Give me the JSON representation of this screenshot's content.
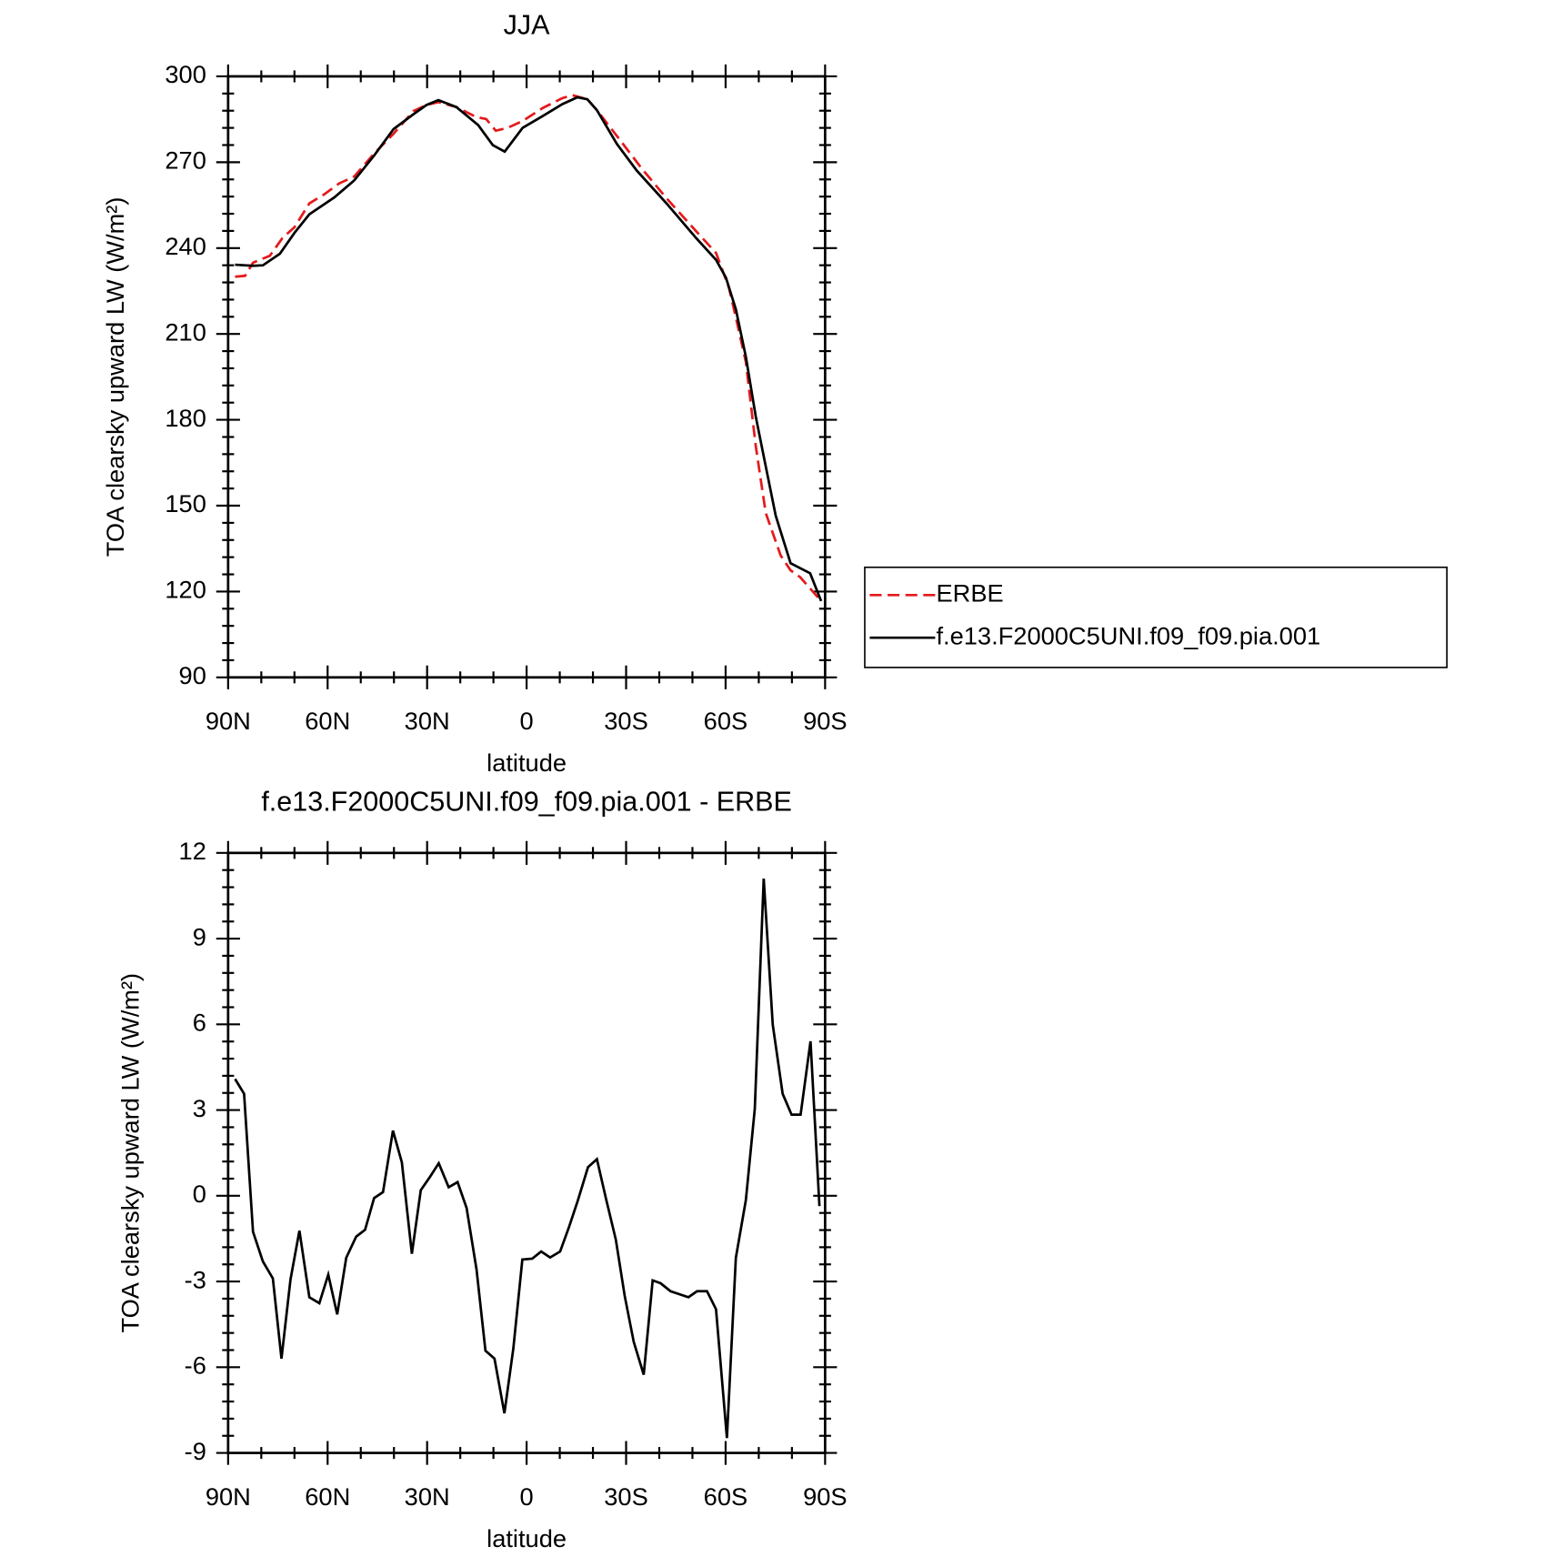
{
  "chart_data": [
    {
      "type": "line",
      "title": "JJA",
      "xlabel": "latitude",
      "ylabel": "TOA clearsky upward LW (W/m²)",
      "xlim": [
        90,
        -90
      ],
      "xticks": [
        {
          "value": 90,
          "label": "90N"
        },
        {
          "value": 60,
          "label": "60N"
        },
        {
          "value": 30,
          "label": "30N"
        },
        0,
        {
          "value": -30,
          "label": "30S"
        },
        {
          "value": -60,
          "label": "60S"
        },
        {
          "value": -90,
          "label": "90S"
        }
      ],
      "ylim": [
        90,
        300
      ],
      "yticks": [
        90,
        120,
        150,
        180,
        210,
        240,
        270,
        300
      ],
      "legend": "right",
      "series": [
        {
          "name": "ERBE",
          "color": "#e41a1c",
          "dash": "dashed",
          "x": [
            87.9,
            84.9,
            82.5,
            77.4,
            73.6,
            70.0,
            65.5,
            61.0,
            56.5,
            52.0,
            46.0,
            40.1,
            34.1,
            30.2,
            26.6,
            21.2,
            15.2,
            12.2,
            9.3,
            5.7,
            1.2,
            -4.8,
            -10.8,
            -13.8,
            -18.3,
            -21.2,
            -27.2,
            -34.7,
            -42.2,
            -51.1,
            -57.1,
            -61.0,
            -63.1,
            -66.1,
            -69.1,
            -72.1,
            -76.6,
            -79.6,
            -82.5,
            -88.8
          ],
          "values": [
            230.0,
            230.3,
            234.9,
            237.3,
            243.5,
            247.3,
            255.6,
            258.8,
            262.6,
            265.0,
            273.0,
            280.0,
            287.9,
            290.0,
            291.0,
            289.3,
            285.8,
            285.1,
            281.0,
            282.0,
            284.4,
            288.9,
            292.4,
            293.4,
            292.0,
            288.2,
            279.2,
            267.8,
            257.4,
            245.9,
            238.3,
            226.2,
            215.8,
            200.2,
            170.8,
            147.5,
            132.6,
            127.4,
            125.0,
            116.7
          ]
        },
        {
          "name": "f.e13.F2000C5UNI.f09_f09.pia.001",
          "color": "#000000",
          "dash": "solid",
          "x": [
            87.9,
            82.5,
            79.5,
            74.4,
            70.0,
            65.5,
            58.0,
            52.0,
            46.0,
            40.1,
            34.1,
            30.2,
            26.6,
            21.2,
            14.6,
            10.2,
            6.6,
            1.2,
            -4.8,
            -10.8,
            -15.3,
            -18.3,
            -21.2,
            -27.2,
            -33.2,
            -42.2,
            -51.1,
            -57.1,
            -60.1,
            -63.1,
            -66.1,
            -69.1,
            -72.1,
            -75.1,
            -79.6,
            -85.5,
            -88.8
          ],
          "values": [
            234.2,
            233.8,
            234.0,
            238.0,
            245.3,
            251.8,
            257.7,
            263.6,
            272.3,
            281.6,
            286.8,
            290.0,
            291.7,
            289.3,
            283.0,
            276.0,
            273.7,
            282.0,
            286.1,
            290.3,
            292.7,
            292.0,
            288.2,
            276.4,
            267.1,
            255.6,
            243.5,
            235.9,
            229.7,
            218.6,
            202.0,
            181.1,
            163.8,
            146.5,
            129.9,
            126.4,
            116.7
          ]
        }
      ]
    },
    {
      "type": "line",
      "title": "f.e13.F2000C5UNI.f09_f09.pia.001 - ERBE",
      "xlabel": "latitude",
      "ylabel": "TOA clearsky upward LW (W/m²)",
      "xlim": [
        90,
        -90
      ],
      "xticks": [
        {
          "value": 90,
          "label": "90N"
        },
        {
          "value": 60,
          "label": "60N"
        },
        {
          "value": 30,
          "label": "30N"
        },
        0,
        {
          "value": -30,
          "label": "30S"
        },
        {
          "value": -60,
          "label": "60S"
        },
        {
          "value": -90,
          "label": "90S"
        }
      ],
      "ylim": [
        -9,
        12
      ],
      "yticks": [
        -9,
        -6,
        -3,
        0,
        3,
        6,
        9,
        12
      ],
      "series": [
        {
          "color": "#000000",
          "dash": "solid",
          "x": [
            87.9,
            85.2,
            82.5,
            79.5,
            76.5,
            73.9,
            71.2,
            68.5,
            65.5,
            62.5,
            59.8,
            57.1,
            54.4,
            51.4,
            48.7,
            46.0,
            43.3,
            40.3,
            37.6,
            34.6,
            31.9,
            29.2,
            26.5,
            23.5,
            20.8,
            18.1,
            15.1,
            12.4,
            9.7,
            6.7,
            4.0,
            1.3,
            -1.7,
            -4.4,
            -7.1,
            -10.1,
            -12.8,
            -15.5,
            -18.5,
            -21.2,
            -23.9,
            -26.9,
            -29.6,
            -32.3,
            -35.3,
            -38.0,
            -40.4,
            -43.4,
            -48.8,
            -51.4,
            -54.4,
            -57.1,
            -60.4,
            -63.1,
            -66.1,
            -68.8,
            -71.5,
            -74.2,
            -77.2,
            -79.9,
            -82.6,
            -85.6,
            -88.3
          ],
          "values": [
            4.09,
            3.57,
            -1.26,
            -2.3,
            -2.89,
            -5.7,
            -2.93,
            -1.22,
            -3.55,
            -3.76,
            -2.76,
            -4.15,
            -2.17,
            -1.43,
            -1.19,
            -0.08,
            0.13,
            2.28,
            1.17,
            -2.03,
            0.2,
            0.65,
            1.14,
            0.3,
            0.48,
            -0.43,
            -2.58,
            -5.42,
            -5.7,
            -7.61,
            -5.35,
            -2.23,
            -2.2,
            -1.95,
            -2.16,
            -1.95,
            -1.09,
            -0.15,
            1.0,
            1.28,
            -0.08,
            -1.54,
            -3.52,
            -5.11,
            -6.26,
            -2.96,
            -3.06,
            -3.34,
            -3.55,
            -3.34,
            -3.34,
            -3.97,
            -8.48,
            -2.17,
            -0.15,
            3.04,
            11.1,
            5.99,
            3.57,
            2.84,
            2.84,
            5.41,
            -0.36
          ]
        }
      ]
    }
  ]
}
